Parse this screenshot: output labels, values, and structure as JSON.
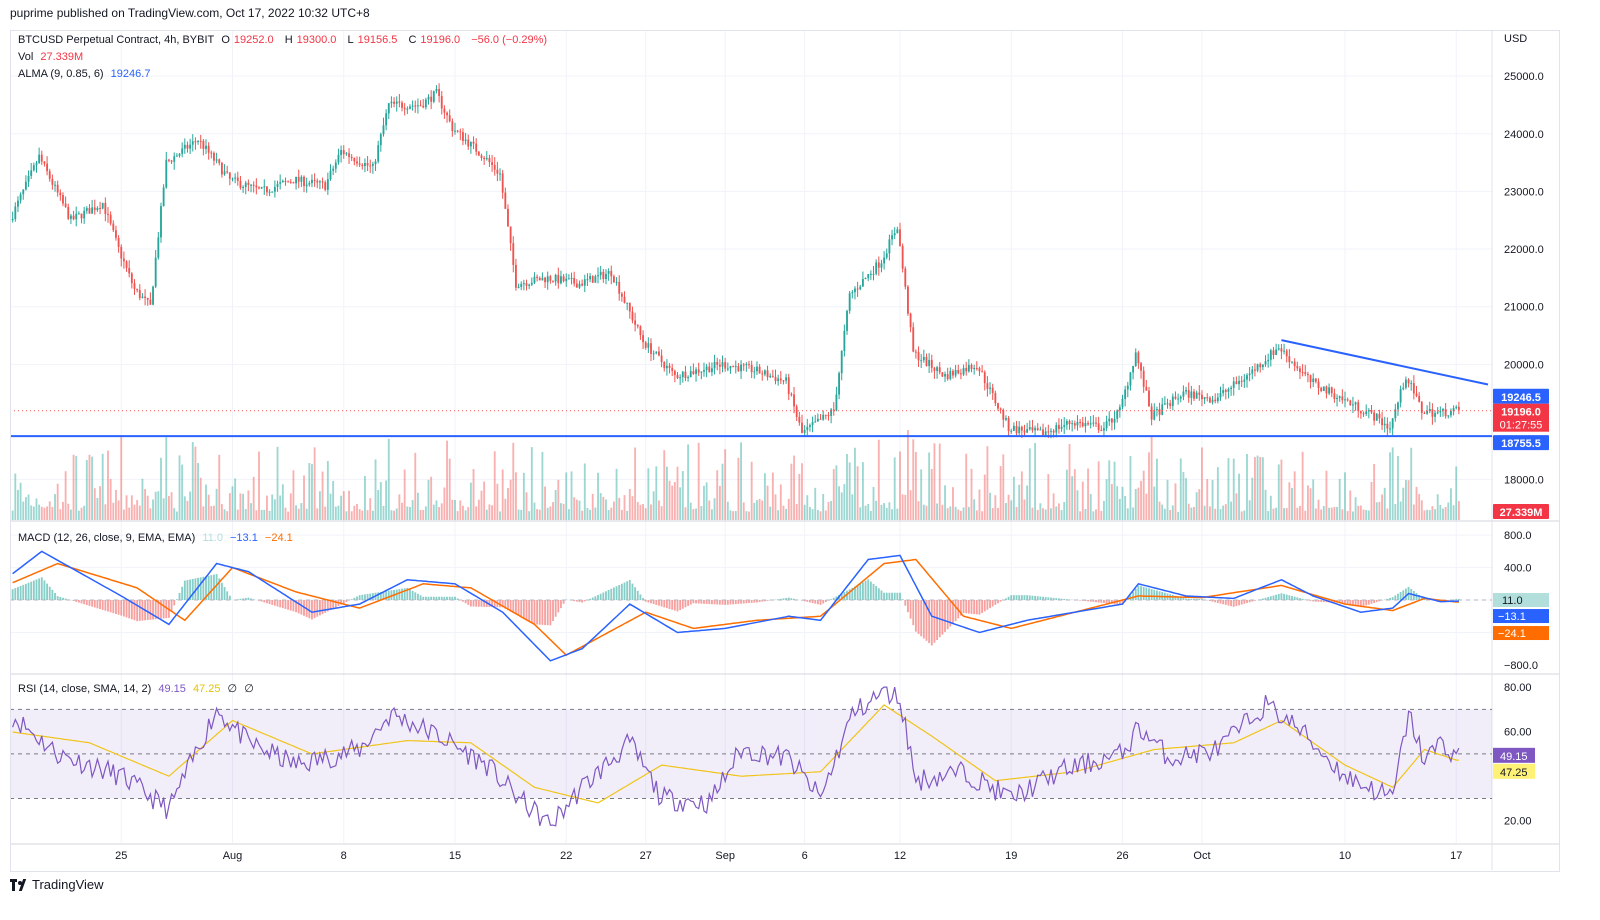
{
  "header": {
    "published_text": "puprime published on TradingView.com, Oct 17, 2022 10:32 UTC+8"
  },
  "footer": {
    "brand": "TradingView"
  },
  "main_legend": {
    "symbol": "BTCUSD Perpetual Contract, 4h, BYBIT",
    "open_label": "O",
    "open": "19252.0",
    "high_label": "H",
    "high": "19300.0",
    "low_label": "L",
    "low": "19156.5",
    "close_label": "C",
    "close": "19196.0",
    "change": "−56.0 (−0.29%)",
    "vol_label": "Vol",
    "vol_value": "27.339M",
    "alma_label": "ALMA (9, 0.85, 6)",
    "alma_value": "19246.7"
  },
  "macd_legend": {
    "label": "MACD (12, 26, close, 9, EMA, EMA)",
    "hist": "11.0",
    "macd": "−13.1",
    "signal": "−24.1"
  },
  "rsi_legend": {
    "label": "RSI (14, close, SMA, 14, 2)",
    "rsi": "49.15",
    "ma": "47.25",
    "z1": "∅",
    "z2": "∅"
  },
  "colors": {
    "up": "#26a69a",
    "down": "#ef5350",
    "macd": "#2962ff",
    "signal": "#ff6d00",
    "rsi": "#7e57c2",
    "rsi_ma": "#f0c419",
    "line": "#2962ff"
  },
  "chart_data": [
    {
      "type": "candlestick",
      "title": "BTCUSD Perpetual Contract, 4h, BYBIT",
      "currency": "USD",
      "ylim": [
        17300,
        25800
      ],
      "y_ticks": [
        "25000.0",
        "24000.0",
        "23000.0",
        "22000.0",
        "21000.0",
        "20000.0",
        "18000.0"
      ],
      "x_ticks": [
        "25",
        "Aug",
        "8",
        "15",
        "22",
        "27",
        "Sep",
        "6",
        "12",
        "19",
        "26",
        "Oct",
        "10",
        "17"
      ],
      "x_tick_dates": [
        "2022-07-25",
        "2022-08-01",
        "2022-08-08",
        "2022-08-15",
        "2022-08-22",
        "2022-08-27",
        "2022-09-01",
        "2022-09-06",
        "2022-09-12",
        "2022-09-19",
        "2022-09-26",
        "2022-10-01",
        "2022-10-10",
        "2022-10-17"
      ],
      "price_path": [
        [
          "2022-07-18",
          22400
        ],
        [
          "2022-07-20",
          23600
        ],
        [
          "2022-07-22",
          22500
        ],
        [
          "2022-07-24",
          22800
        ],
        [
          "2022-07-25",
          22000
        ],
        [
          "2022-07-26",
          21300
        ],
        [
          "2022-07-27",
          21000
        ],
        [
          "2022-07-28",
          23500
        ],
        [
          "2022-07-30",
          23900
        ],
        [
          "2022-08-01",
          23200
        ],
        [
          "2022-08-03",
          23000
        ],
        [
          "2022-08-05",
          23200
        ],
        [
          "2022-08-07",
          23100
        ],
        [
          "2022-08-08",
          23700
        ],
        [
          "2022-08-10",
          23400
        ],
        [
          "2022-08-11",
          24500
        ],
        [
          "2022-08-13",
          24500
        ],
        [
          "2022-08-14",
          24700
        ],
        [
          "2022-08-15",
          24100
        ],
        [
          "2022-08-17",
          23600
        ],
        [
          "2022-08-18",
          23300
        ],
        [
          "2022-08-19",
          21400
        ],
        [
          "2022-08-21",
          21500
        ],
        [
          "2022-08-23",
          21400
        ],
        [
          "2022-08-25",
          21600
        ],
        [
          "2022-08-27",
          20400
        ],
        [
          "2022-08-29",
          19800
        ],
        [
          "2022-09-01",
          20000
        ],
        [
          "2022-09-03",
          19900
        ],
        [
          "2022-09-05",
          19700
        ],
        [
          "2022-09-06",
          18800
        ],
        [
          "2022-09-08",
          19200
        ],
        [
          "2022-09-09",
          21200
        ],
        [
          "2022-09-11",
          21800
        ],
        [
          "2022-09-12",
          22400
        ],
        [
          "2022-09-13",
          20200
        ],
        [
          "2022-09-15",
          19800
        ],
        [
          "2022-09-17",
          20000
        ],
        [
          "2022-09-19",
          18900
        ],
        [
          "2022-09-21",
          18800
        ],
        [
          "2022-09-23",
          19000
        ],
        [
          "2022-09-25",
          18900
        ],
        [
          "2022-09-26",
          19200
        ],
        [
          "2022-09-27",
          20200
        ],
        [
          "2022-09-28",
          19100
        ],
        [
          "2022-09-30",
          19500
        ],
        [
          "2022-10-02",
          19400
        ],
        [
          "2022-10-04",
          19800
        ],
        [
          "2022-10-06",
          20300
        ],
        [
          "2022-10-08",
          19700
        ],
        [
          "2022-10-10",
          19400
        ],
        [
          "2022-10-12",
          19100
        ],
        [
          "2022-10-13",
          18900
        ],
        [
          "2022-10-14",
          19800
        ],
        [
          "2022-10-15",
          19200
        ],
        [
          "2022-10-16",
          19150
        ],
        [
          "2022-10-17",
          19196
        ]
      ],
      "current_price": "19196.0",
      "countdown": "01:27:55",
      "alma_value": "19246.5",
      "support_line": {
        "value": "18755.5"
      },
      "trendline": [
        [
          "2022-10-06",
          20420
        ],
        [
          "2022-10-19",
          19650
        ]
      ],
      "volume_value": "27.339M"
    },
    {
      "type": "macd",
      "title": "MACD (12, 26, close, 9, EMA, EMA)",
      "ylim": [
        -900,
        950
      ],
      "y_ticks": [
        "800.0",
        "400.0",
        "−800.0"
      ],
      "macd_path": [
        [
          "2022-07-18",
          300
        ],
        [
          "2022-07-20",
          600
        ],
        [
          "2022-07-25",
          50
        ],
        [
          "2022-07-28",
          -300
        ],
        [
          "2022-07-31",
          450
        ],
        [
          "2022-08-02",
          350
        ],
        [
          "2022-08-06",
          -150
        ],
        [
          "2022-08-09",
          -50
        ],
        [
          "2022-08-12",
          250
        ],
        [
          "2022-08-15",
          200
        ],
        [
          "2022-08-18",
          -150
        ],
        [
          "2022-08-21",
          -750
        ],
        [
          "2022-08-23",
          -600
        ],
        [
          "2022-08-26",
          -50
        ],
        [
          "2022-08-29",
          -400
        ],
        [
          "2022-09-01",
          -350
        ],
        [
          "2022-09-05",
          -200
        ],
        [
          "2022-09-07",
          -250
        ],
        [
          "2022-09-10",
          500
        ],
        [
          "2022-09-12",
          550
        ],
        [
          "2022-09-14",
          -200
        ],
        [
          "2022-09-17",
          -400
        ],
        [
          "2022-09-20",
          -250
        ],
        [
          "2022-09-23",
          -150
        ],
        [
          "2022-09-26",
          -50
        ],
        [
          "2022-09-27",
          200
        ],
        [
          "2022-09-30",
          50
        ],
        [
          "2022-10-03",
          20
        ],
        [
          "2022-10-06",
          250
        ],
        [
          "2022-10-08",
          50
        ],
        [
          "2022-10-11",
          -150
        ],
        [
          "2022-10-13",
          -100
        ],
        [
          "2022-10-14",
          80
        ],
        [
          "2022-10-16",
          -20
        ],
        [
          "2022-10-17",
          -13.1
        ]
      ],
      "signal_path": [
        [
          "2022-07-18",
          200
        ],
        [
          "2022-07-21",
          450
        ],
        [
          "2022-07-26",
          150
        ],
        [
          "2022-07-29",
          -250
        ],
        [
          "2022-08-01",
          400
        ],
        [
          "2022-08-05",
          100
        ],
        [
          "2022-08-09",
          -100
        ],
        [
          "2022-08-13",
          200
        ],
        [
          "2022-08-16",
          150
        ],
        [
          "2022-08-20",
          -300
        ],
        [
          "2022-08-22",
          -680
        ],
        [
          "2022-08-27",
          -150
        ],
        [
          "2022-08-30",
          -350
        ],
        [
          "2022-09-03",
          -250
        ],
        [
          "2022-09-07",
          -200
        ],
        [
          "2022-09-11",
          450
        ],
        [
          "2022-09-13",
          500
        ],
        [
          "2022-09-16",
          -200
        ],
        [
          "2022-09-19",
          -350
        ],
        [
          "2022-09-23",
          -150
        ],
        [
          "2022-09-27",
          50
        ],
        [
          "2022-10-01",
          30
        ],
        [
          "2022-10-06",
          180
        ],
        [
          "2022-10-10",
          -50
        ],
        [
          "2022-10-13",
          -130
        ],
        [
          "2022-10-15",
          20
        ],
        [
          "2022-10-17",
          -24.1
        ]
      ],
      "histogram": "11.0",
      "macd_value": "−13.1",
      "signal_value": "−24.1"
    },
    {
      "type": "rsi",
      "title": "RSI (14, close, SMA, 14, 2)",
      "ylim": [
        10,
        85
      ],
      "y_ticks": [
        "80.00",
        "60.00",
        "20.00"
      ],
      "band": [
        30,
        70
      ],
      "middle": 50,
      "rsi_path": [
        [
          "2022-07-18",
          68
        ],
        [
          "2022-07-21",
          50
        ],
        [
          "2022-07-25",
          40
        ],
        [
          "2022-07-28",
          25
        ],
        [
          "2022-07-31",
          70
        ],
        [
          "2022-08-02",
          55
        ],
        [
          "2022-08-05",
          45
        ],
        [
          "2022-08-09",
          52
        ],
        [
          "2022-08-11",
          68
        ],
        [
          "2022-08-14",
          58
        ],
        [
          "2022-08-17",
          45
        ],
        [
          "2022-08-19",
          30
        ],
        [
          "2022-08-21",
          18
        ],
        [
          "2022-08-23",
          35
        ],
        [
          "2022-08-26",
          55
        ],
        [
          "2022-08-28",
          30
        ],
        [
          "2022-08-31",
          28
        ],
        [
          "2022-09-02",
          52
        ],
        [
          "2022-09-05",
          48
        ],
        [
          "2022-09-07",
          30
        ],
        [
          "2022-09-09",
          68
        ],
        [
          "2022-09-11",
          78
        ],
        [
          "2022-09-12",
          75
        ],
        [
          "2022-09-13",
          38
        ],
        [
          "2022-09-16",
          42
        ],
        [
          "2022-09-19",
          30
        ],
        [
          "2022-09-22",
          42
        ],
        [
          "2022-09-26",
          50
        ],
        [
          "2022-09-27",
          62
        ],
        [
          "2022-09-29",
          48
        ],
        [
          "2022-10-02",
          52
        ],
        [
          "2022-10-05",
          72
        ],
        [
          "2022-10-07",
          62
        ],
        [
          "2022-10-10",
          40
        ],
        [
          "2022-10-13",
          30
        ],
        [
          "2022-10-14",
          68
        ],
        [
          "2022-10-15",
          47
        ],
        [
          "2022-10-16",
          55
        ],
        [
          "2022-10-17",
          49.15
        ]
      ],
      "ma_path": [
        [
          "2022-07-18",
          60
        ],
        [
          "2022-07-23",
          55
        ],
        [
          "2022-07-28",
          40
        ],
        [
          "2022-08-01",
          65
        ],
        [
          "2022-08-06",
          50
        ],
        [
          "2022-08-12",
          56
        ],
        [
          "2022-08-16",
          55
        ],
        [
          "2022-08-20",
          35
        ],
        [
          "2022-08-24",
          28
        ],
        [
          "2022-08-28",
          45
        ],
        [
          "2022-09-02",
          40
        ],
        [
          "2022-09-07",
          42
        ],
        [
          "2022-09-11",
          72
        ],
        [
          "2022-09-14",
          58
        ],
        [
          "2022-09-18",
          38
        ],
        [
          "2022-09-23",
          42
        ],
        [
          "2022-09-28",
          52
        ],
        [
          "2022-10-03",
          55
        ],
        [
          "2022-10-06",
          65
        ],
        [
          "2022-10-10",
          45
        ],
        [
          "2022-10-13",
          35
        ],
        [
          "2022-10-15",
          52
        ],
        [
          "2022-10-17",
          47.25
        ]
      ],
      "rsi_value": "49.15",
      "ma_value": "47.25"
    }
  ]
}
